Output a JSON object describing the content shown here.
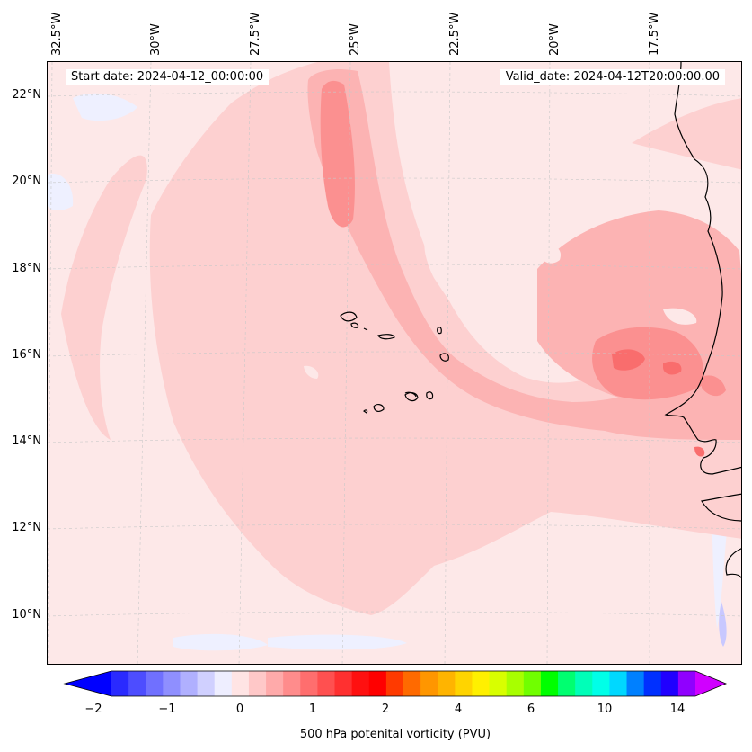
{
  "map": {
    "start_date_text": "Start date: 2024-04-12_00:00:00",
    "valid_date_text": "Valid_date: 2024-04-12T20:00:00.00",
    "lon_labels": [
      "32.5°W",
      "30°W",
      "27.5°W",
      "25°W",
      "22.5°W",
      "20°W",
      "17.5°W"
    ],
    "lat_labels": [
      "22°N",
      "20°N",
      "18°N",
      "16°N",
      "14°N",
      "12°N",
      "10°N"
    ],
    "field_colors": {
      "background": "#fde8e8",
      "level_1": "#fdd0d0",
      "level_2": "#fcb3b3",
      "level_3": "#fb9090",
      "level_4": "#f96d6d",
      "negative_light": "#eef0ff",
      "negative_mid": "#c8c8ff",
      "coastline": "#000000",
      "grid": "#c8c8c8"
    }
  },
  "colorbar": {
    "label": "500 hPa potenital vorticity (PVU)",
    "ticks": [
      "−2",
      "−1",
      "0",
      "1",
      "2",
      "4",
      "6",
      "10",
      "14"
    ],
    "colors": [
      "#0000ff",
      "#2a2aff",
      "#4d4dff",
      "#7070ff",
      "#8f8fff",
      "#b0b0ff",
      "#d0d0ff",
      "#eeeeff",
      "#ffe4e4",
      "#ffc8c8",
      "#ffaaaa",
      "#ff8c8c",
      "#ff6e6e",
      "#ff5050",
      "#ff3030",
      "#ff1010",
      "#ff0000",
      "#ff3a00",
      "#ff6a00",
      "#ff9600",
      "#ffb400",
      "#ffd400",
      "#fff000",
      "#d8ff00",
      "#a8ff00",
      "#70ff00",
      "#00ff00",
      "#00ff70",
      "#00ffb8",
      "#00ffe8",
      "#00d8ff",
      "#0080ff",
      "#0030ff",
      "#2000ff",
      "#9000ff",
      "#d000ff"
    ]
  }
}
